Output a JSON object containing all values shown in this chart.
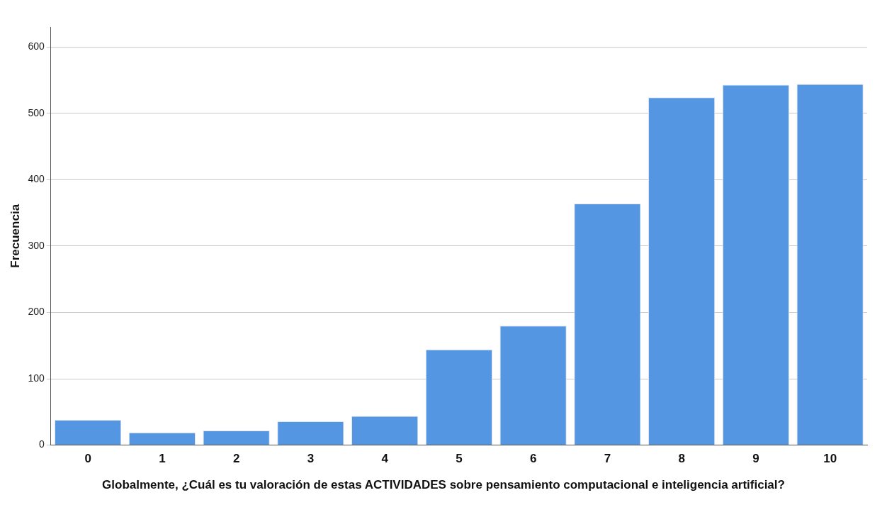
{
  "chart_data": {
    "type": "bar",
    "xlabel": "Globalmente, ¿Cuál es tu valoración de estas ACTIVIDADES sobre pensamiento computacional e inteligencia artificial?",
    "ylabel": "Frecuencia",
    "categories": [
      "0",
      "1",
      "2",
      "3",
      "4",
      "5",
      "6",
      "7",
      "8",
      "9",
      "10"
    ],
    "values": [
      38,
      19,
      22,
      36,
      44,
      144,
      180,
      364,
      524,
      543,
      544
    ],
    "color": "#5596e3",
    "ylim": [
      0,
      630
    ],
    "yticks": [
      0,
      100,
      200,
      300,
      400,
      500,
      600
    ],
    "grid": "y",
    "legend": false
  }
}
